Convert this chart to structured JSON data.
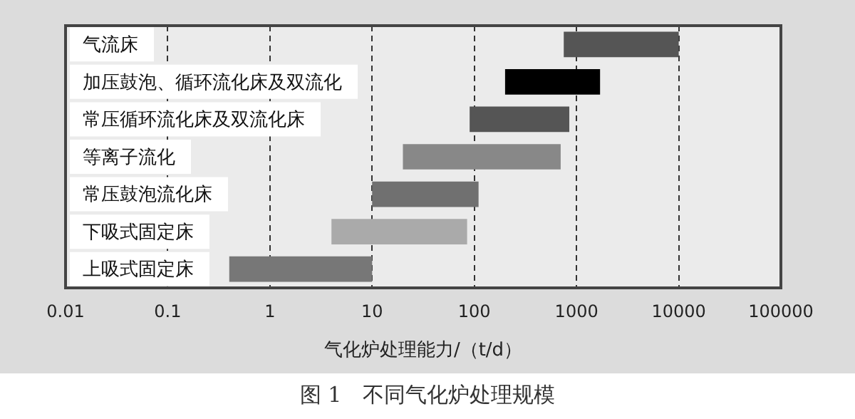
{
  "chart_data": {
    "type": "bar",
    "orientation": "horizontal",
    "title": "图 1　不同气化炉处理规模",
    "xlabel": "气化炉处理能力/（t/d）",
    "categories": [
      "气流床",
      "加压鼓泡、循环流化床及双流化",
      "常压循环流化床及双流化床",
      "等离子流化",
      "常压鼓泡流化床",
      "下吸式固定床",
      "上吸式固定床"
    ],
    "base": [
      750,
      200,
      90,
      20,
      10,
      4,
      0.4
    ],
    "values": [
      9250,
      1500,
      760,
      680,
      100,
      81,
      9.6
    ],
    "colors": [
      "#555555",
      "#000000",
      "#555555",
      "#888888",
      "#707070",
      "#aaaaaa",
      "#777777"
    ],
    "log": "x",
    "xlim": [
      0.01,
      100000
    ],
    "xticks": [
      0.01,
      0.1,
      1,
      10,
      100,
      1000,
      10000,
      100000
    ],
    "grid": "x",
    "line_style": "dashed"
  }
}
